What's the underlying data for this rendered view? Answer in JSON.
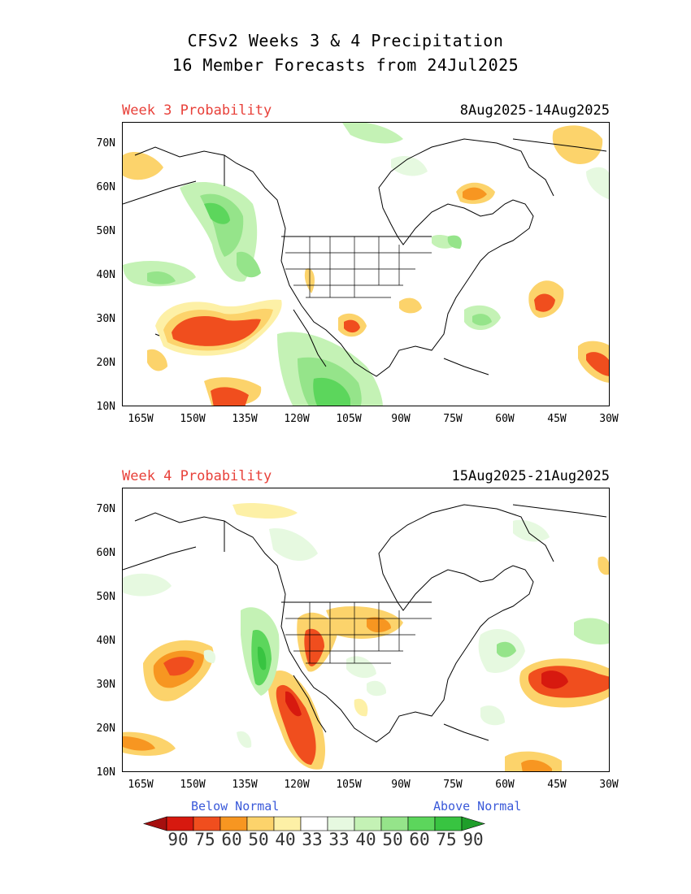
{
  "header": {
    "line1": "CFSv2 Weeks 3 & 4 Precipitation",
    "line2": "16 Member Forecasts from 24Jul2025"
  },
  "panels": [
    {
      "label": "Week 3 Probability",
      "dates": "8Aug2025-14Aug2025"
    },
    {
      "label": "Week 4 Probability",
      "dates": "15Aug2025-21Aug2025"
    }
  ],
  "lat_ticks": [
    "70N",
    "60N",
    "50N",
    "40N",
    "30N",
    "20N",
    "10N"
  ],
  "lon_ticks": [
    "165W",
    "150W",
    "135W",
    "120W",
    "105W",
    "90W",
    "75W",
    "60W",
    "45W",
    "30W"
  ],
  "legend": {
    "below_label": "Below Normal",
    "above_label": "Above Normal",
    "values": [
      "90",
      "75",
      "60",
      "50",
      "40",
      "33",
      "33",
      "40",
      "50",
      "60",
      "75",
      "90"
    ],
    "colors": {
      "below": [
        "#a50f0f",
        "#d7190f",
        "#f04e1e",
        "#f79621",
        "#fcd36b",
        "#fdf0a6"
      ],
      "neutral": "#ffffff",
      "above": [
        "#e6f9e0",
        "#c4f2b5",
        "#95e48a",
        "#5cd65c",
        "#38c441",
        "#1f9e2a"
      ]
    }
  }
}
